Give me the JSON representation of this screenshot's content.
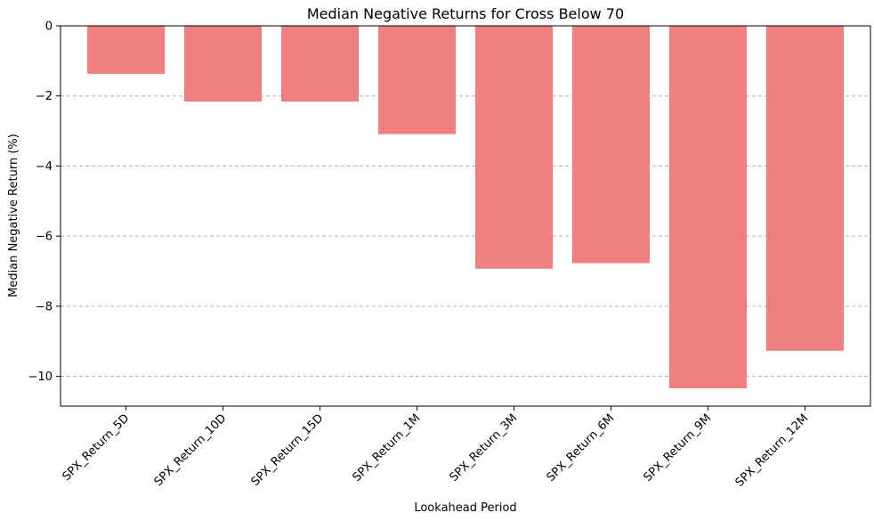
{
  "chart_data": {
    "type": "bar",
    "title": "Median Negative Returns for Cross Below 70",
    "xlabel": "Lookahead Period",
    "ylabel": "Median Negative Return (%)",
    "categories": [
      "SPX_Return_5D",
      "SPX_Return_10D",
      "SPX_Return_15D",
      "SPX_Return_1M",
      "SPX_Return_3M",
      "SPX_Return_6M",
      "SPX_Return_9M",
      "SPX_Return_12M"
    ],
    "values": [
      -1.37,
      -2.16,
      -2.16,
      -3.09,
      -6.93,
      -6.77,
      -10.34,
      -9.27
    ],
    "ylim": [
      -10.85,
      0
    ],
    "yticks": [
      0,
      -2,
      -4,
      -6,
      -8,
      -10
    ],
    "grid": "horizontal dashed",
    "bar_color": "#f08080"
  }
}
